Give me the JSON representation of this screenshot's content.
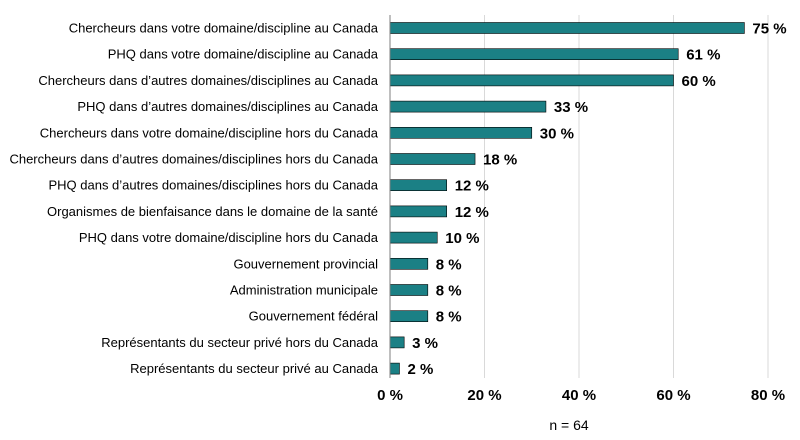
{
  "chart_data": {
    "type": "bar",
    "orientation": "horizontal",
    "categories": [
      "Chercheurs dans votre domaine/discipline au Canada",
      "PHQ dans votre domaine/discipline au Canada",
      "Chercheurs dans d’autres domaines/disciplines au Canada",
      "PHQ dans d’autres domaines/disciplines au Canada",
      "Chercheurs dans votre domaine/discipline hors du Canada",
      "Chercheurs dans d’autres domaines/disciplines hors du Canada",
      "PHQ dans d’autres domaines/disciplines hors du Canada",
      "Organismes de bienfaisance dans le domaine de la santé",
      "PHQ dans votre domaine/discipline hors du Canada",
      "Gouvernement provincial",
      "Administration municipale",
      "Gouvernement fédéral",
      "Représentants du secteur privé hors du Canada",
      "Représentants du secteur privé au Canada"
    ],
    "values": [
      75,
      61,
      60,
      33,
      30,
      18,
      12,
      12,
      10,
      8,
      8,
      8,
      3,
      2
    ],
    "value_labels": [
      "75 %",
      "61 %",
      "60 %",
      "33 %",
      "30 %",
      "18 %",
      "12 %",
      "12 %",
      "10 %",
      "8 %",
      "8 %",
      "8 %",
      "3 %",
      "2 %"
    ],
    "x_ticks": [
      0,
      20,
      40,
      60,
      80
    ],
    "x_tick_labels": [
      "0 %",
      "20 %",
      "40 %",
      "60 %",
      "80 %"
    ],
    "xlim": [
      0,
      80
    ],
    "note": "n = 64",
    "grid": true,
    "bar_color": "#1b8085"
  }
}
